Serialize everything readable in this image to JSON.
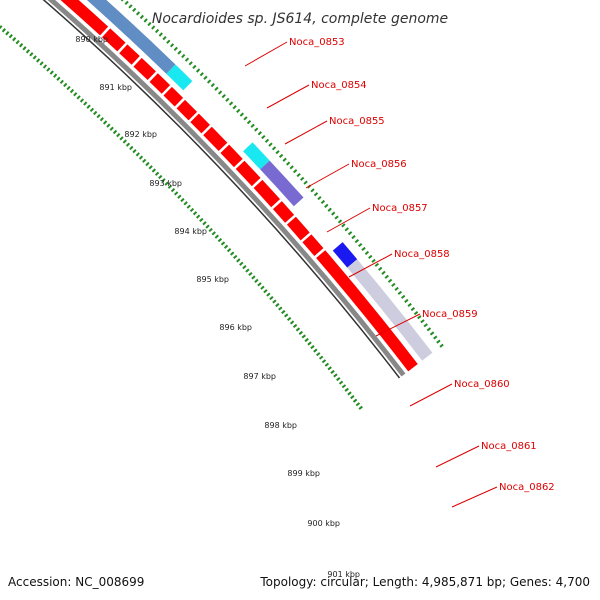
{
  "title": "Nocardioides sp. JS614, complete genome",
  "footer": {
    "accession": "Accession: NC_008699",
    "stats": "Topology: circular; Length: 4,985,871 bp; Genes: 4,700"
  },
  "kbp_ticks": [
    {
      "label": "890 kbp"
    },
    {
      "label": "891 kbp"
    },
    {
      "label": "892 kbp"
    },
    {
      "label": "893 kbp"
    },
    {
      "label": "894 kbp"
    },
    {
      "label": "895 kbp"
    },
    {
      "label": "896 kbp"
    },
    {
      "label": "897 kbp"
    },
    {
      "label": "898 kbp"
    },
    {
      "label": "899 kbp"
    },
    {
      "label": "900 kbp"
    },
    {
      "label": "901 kbp"
    }
  ],
  "genes": [
    {
      "name": "Noca_0853"
    },
    {
      "name": "Noca_0854"
    },
    {
      "name": "Noca_0855"
    },
    {
      "name": "Noca_0856"
    },
    {
      "name": "Noca_0857"
    },
    {
      "name": "Noca_0858"
    },
    {
      "name": "Noca_0859"
    },
    {
      "name": "Noca_0860"
    },
    {
      "name": "Noca_0861"
    },
    {
      "name": "Noca_0862"
    }
  ],
  "colors": {
    "cds": "#ff0000",
    "backbone": "#888888",
    "tick": "#228b22",
    "label": "#dd0000",
    "feature_steelblue": "#4f81bd",
    "feature_cyan": "#00e5ee",
    "feature_purple": "#6a5acd",
    "feature_blue": "#0000ee"
  }
}
